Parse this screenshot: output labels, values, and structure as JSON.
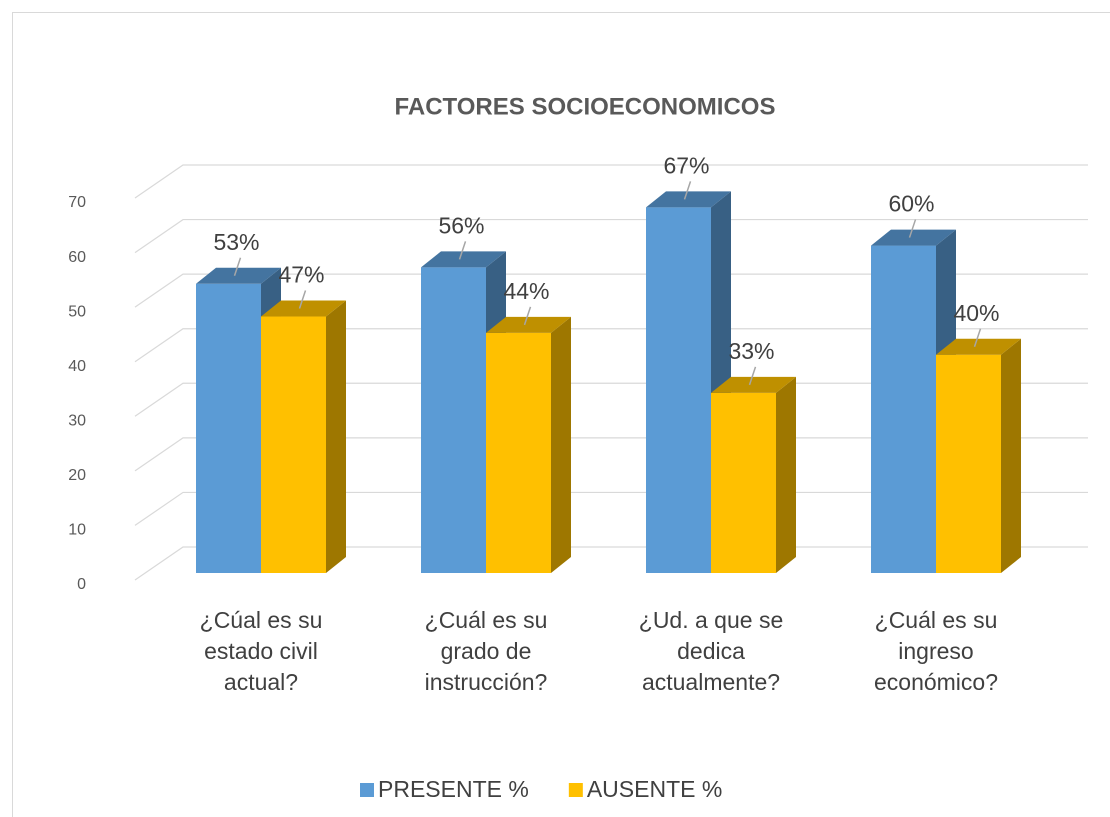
{
  "chart_data": {
    "type": "bar3d",
    "title": "FACTORES SOCIOECONOMICOS",
    "categories": [
      [
        "¿Cúal es su",
        "estado civil",
        "actual?"
      ],
      [
        "¿Cuál es su",
        "grado de",
        "instrucción?"
      ],
      [
        "¿Ud. a que se",
        "dedica",
        "actualmente?"
      ],
      [
        "¿Cuál es su",
        "ingreso",
        "económico?"
      ]
    ],
    "series": [
      {
        "name": "PRESENTE %",
        "color": "#5b9bd5",
        "values": [
          53,
          56,
          67,
          60
        ],
        "value_labels": [
          "53%",
          "56%",
          "67%",
          "60%"
        ]
      },
      {
        "name": "AUSENTE %",
        "color": "#ffc000",
        "values": [
          47,
          44,
          33,
          40
        ],
        "value_labels": [
          "47%",
          "44%",
          "33%",
          "40%"
        ]
      }
    ],
    "ylim": [
      0,
      70
    ],
    "yticks": [
      0,
      10,
      20,
      30,
      40,
      50,
      60,
      70
    ],
    "grid": true,
    "legend": "bottom"
  }
}
